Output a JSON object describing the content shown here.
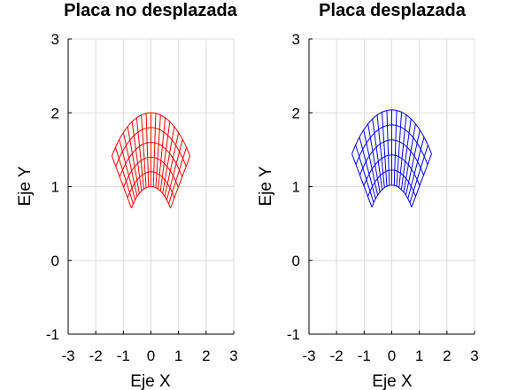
{
  "chart_data": [
    {
      "type": "line",
      "title": "Placa no desplazada",
      "xlabel": "Eje X",
      "ylabel": "Eje Y",
      "xlim": [
        -3,
        3
      ],
      "ylim": [
        -1,
        3
      ],
      "xticks": [
        "-3",
        "-2",
        "-1",
        "0",
        "1",
        "2",
        "3"
      ],
      "yticks": [
        "-1",
        "0",
        "1",
        "2",
        "3"
      ],
      "grid": true,
      "color": "#ff0000",
      "mesh": {
        "description_free": true,
        "radius_range": [
          1.0,
          2.0
        ],
        "radial_divisions": 5,
        "angle_range_deg": [
          45,
          135
        ],
        "angular_divisions": 18,
        "dy": 0.0,
        "scale": 1.0
      }
    },
    {
      "type": "line",
      "title": "Placa desplazada",
      "xlabel": "Eje X",
      "ylabel": "Eje Y",
      "xlim": [
        -3,
        3
      ],
      "ylim": [
        -1,
        3
      ],
      "xticks": [
        "-3",
        "-2",
        "-1",
        "0",
        "1",
        "2",
        "3"
      ],
      "yticks": [
        "-1",
        "0",
        "1",
        "2",
        "3"
      ],
      "grid": true,
      "color": "#0000ff",
      "mesh": {
        "description_free": true,
        "radius_range": [
          1.0,
          2.0
        ],
        "radial_divisions": 5,
        "angle_range_deg": [
          45,
          135
        ],
        "angular_divisions": 18,
        "dy": 0.0,
        "scale": 1.02
      }
    }
  ]
}
